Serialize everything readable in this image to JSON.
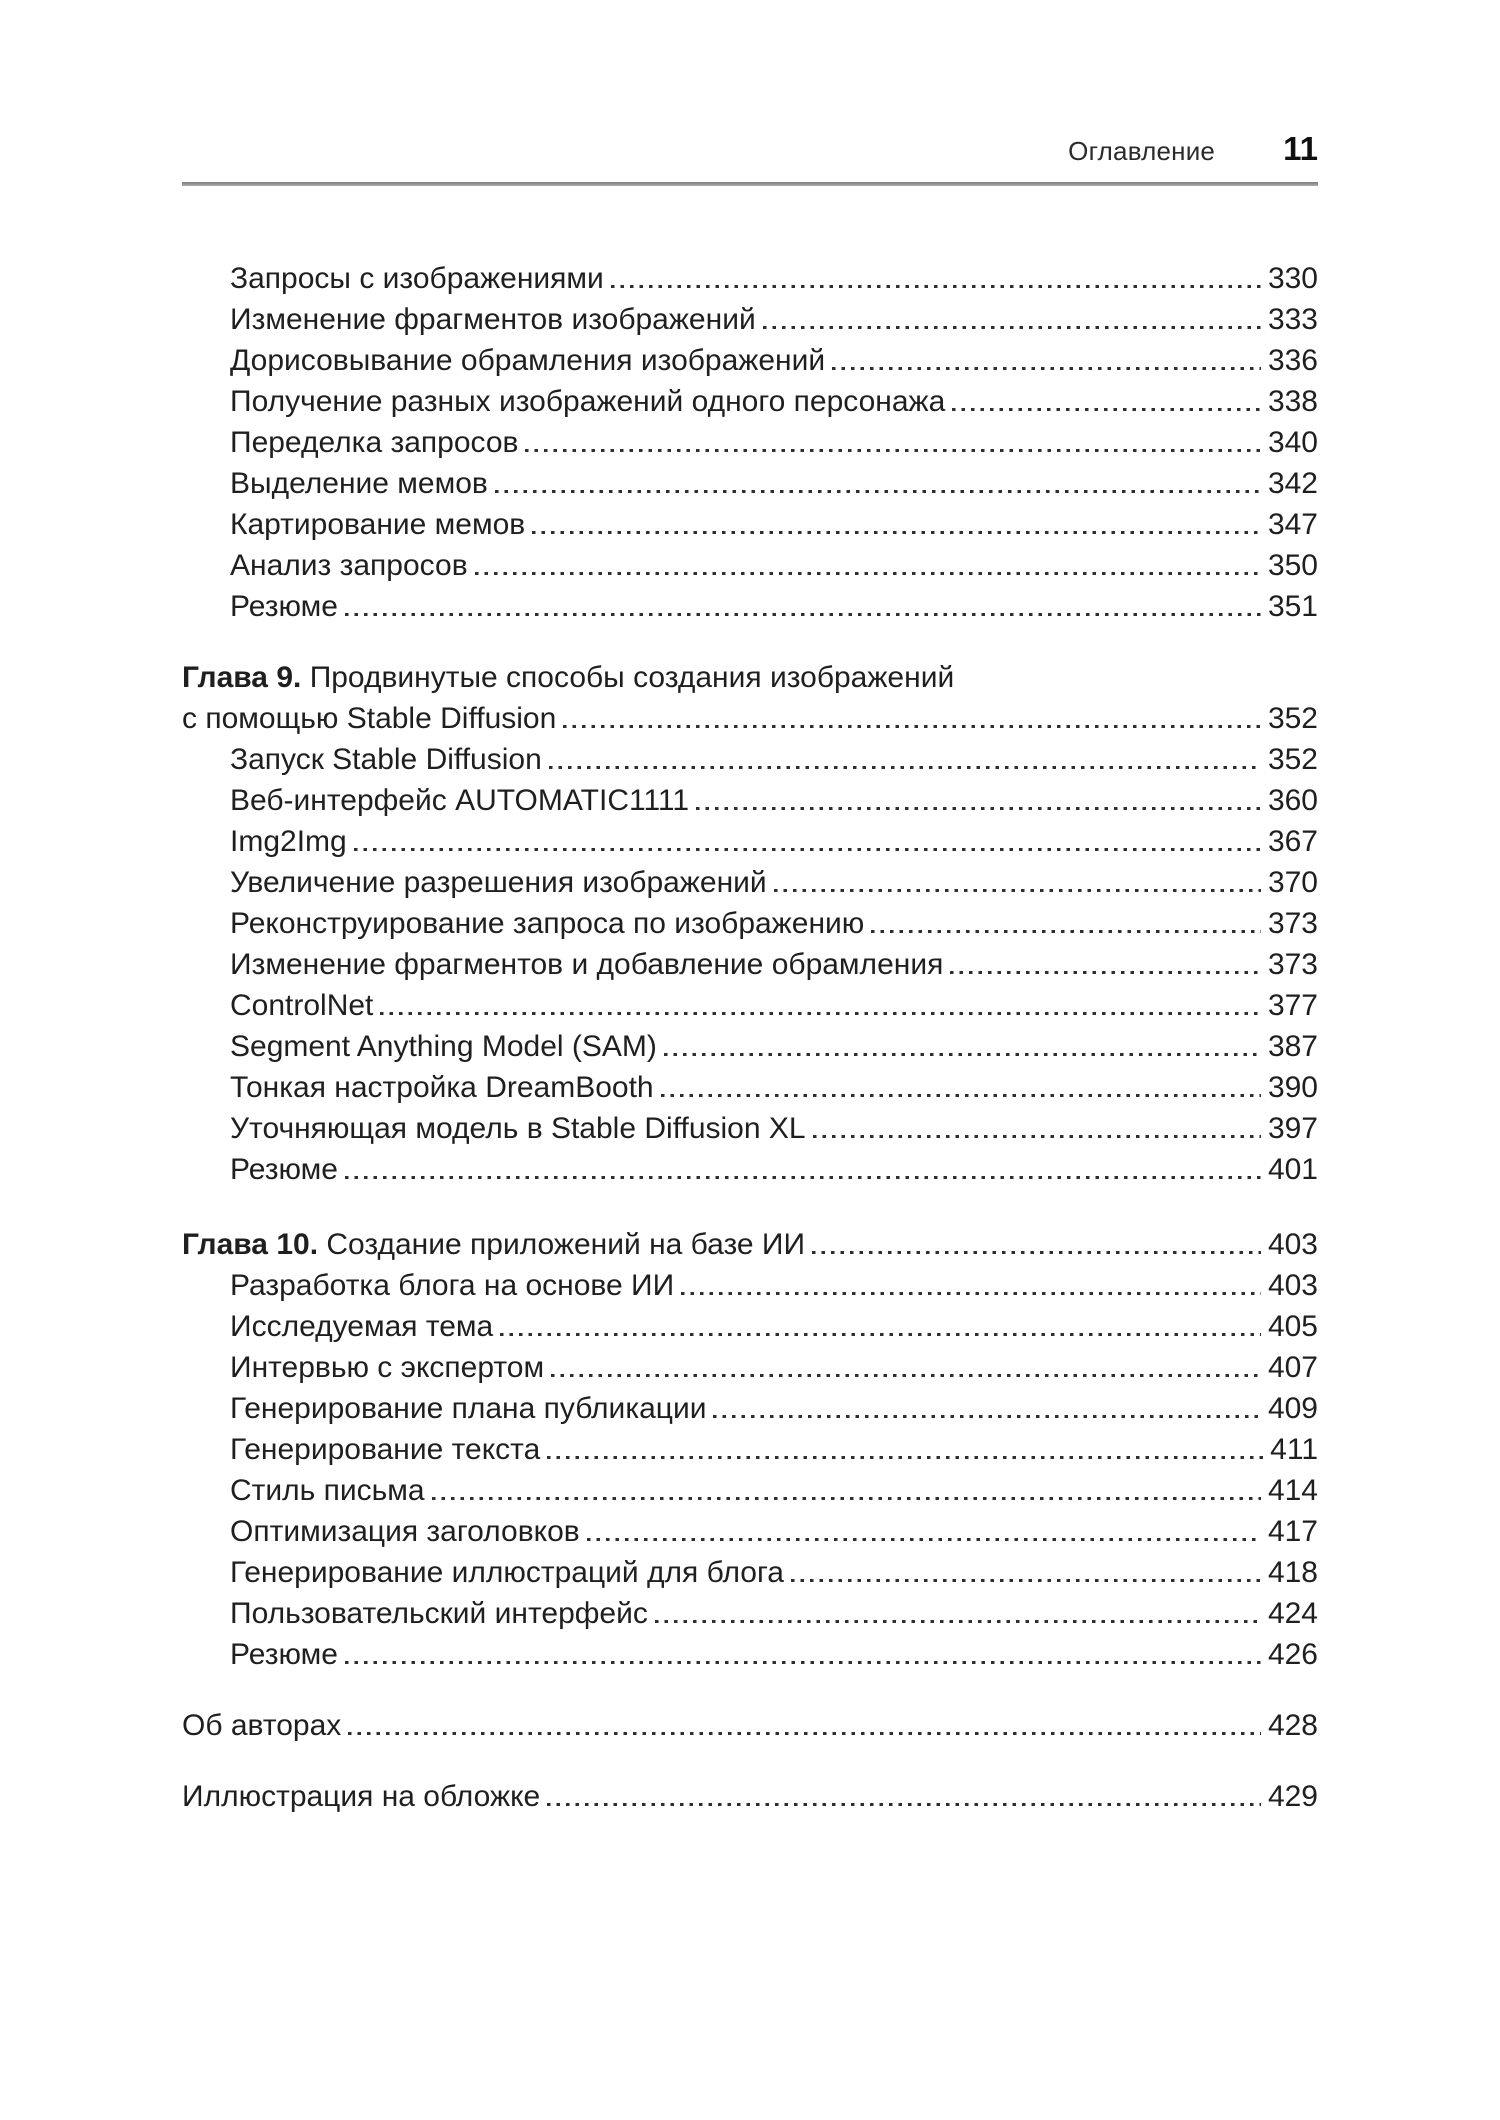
{
  "header": {
    "title": "Оглавление",
    "page_number": "11"
  },
  "colors": {
    "text": "#1f1f1f",
    "rule": "#8c8c8c",
    "leader_dots": "#2e2e2e"
  },
  "sections": {
    "chapter8_items": [
      {
        "label": "Запросы с изображениями",
        "page": "330"
      },
      {
        "label": "Изменение фрагментов изображений",
        "page": "333"
      },
      {
        "label": "Дорисовывание обрамления изображений",
        "page": "336"
      },
      {
        "label": "Получение разных изображений одного персонажа",
        "page": "338"
      },
      {
        "label": "Переделка запросов",
        "page": "340"
      },
      {
        "label": "Выделение мемов",
        "page": "342"
      },
      {
        "label": "Картирование мемов",
        "page": "347"
      },
      {
        "label": "Анализ запросов",
        "page": "350"
      },
      {
        "label": "Резюме",
        "page": "351"
      }
    ],
    "chapter9": {
      "label": "Глава 9.",
      "title_line1": "Продвинутые способы создания изображений",
      "title_line2": "с помощью Stable Diffusion",
      "page": "352",
      "items": [
        {
          "label": "Запуск Stable Diffusion",
          "page": "352"
        },
        {
          "label": "Веб-интерфейс AUTOMATIC1111",
          "page": "360"
        },
        {
          "label": "Img2Img",
          "page": "367"
        },
        {
          "label": "Увеличение разрешения изображений",
          "page": "370"
        },
        {
          "label": "Реконструирование запроса по изображению",
          "page": "373"
        },
        {
          "label": "Изменение фрагментов и добавление обрамления",
          "page": "373"
        },
        {
          "label": "ControlNet",
          "page": "377"
        },
        {
          "label": "Segment Anything Model (SAM)",
          "page": "387"
        },
        {
          "label": "Тонкая настройка DreamBooth",
          "page": "390"
        },
        {
          "label": "Уточняющая модель в Stable Diffusion XL",
          "page": "397"
        },
        {
          "label": "Резюме",
          "page": "401"
        }
      ]
    },
    "chapter10": {
      "label": "Глава 10.",
      "title": "Создание приложений на базе ИИ",
      "page": "403",
      "items": [
        {
          "label": "Разработка блога на основе ИИ",
          "page": "403"
        },
        {
          "label": "Исследуемая тема",
          "page": "405"
        },
        {
          "label": "Интервью с экспертом",
          "page": "407"
        },
        {
          "label": "Генерирование плана публикации",
          "page": "409"
        },
        {
          "label": "Генерирование текста",
          "page": "411"
        },
        {
          "label": "Стиль письма",
          "page": "414"
        },
        {
          "label": "Оптимизация заголовков",
          "page": "417"
        },
        {
          "label": "Генерирование иллюстраций для блога",
          "page": "418"
        },
        {
          "label": "Пользовательский интерфейс",
          "page": "424"
        },
        {
          "label": "Резюме",
          "page": "426"
        }
      ]
    },
    "back_matter": [
      {
        "label": "Об авторах",
        "page": "428"
      },
      {
        "label": "Иллюстрация на обложке",
        "page": "429"
      }
    ]
  }
}
